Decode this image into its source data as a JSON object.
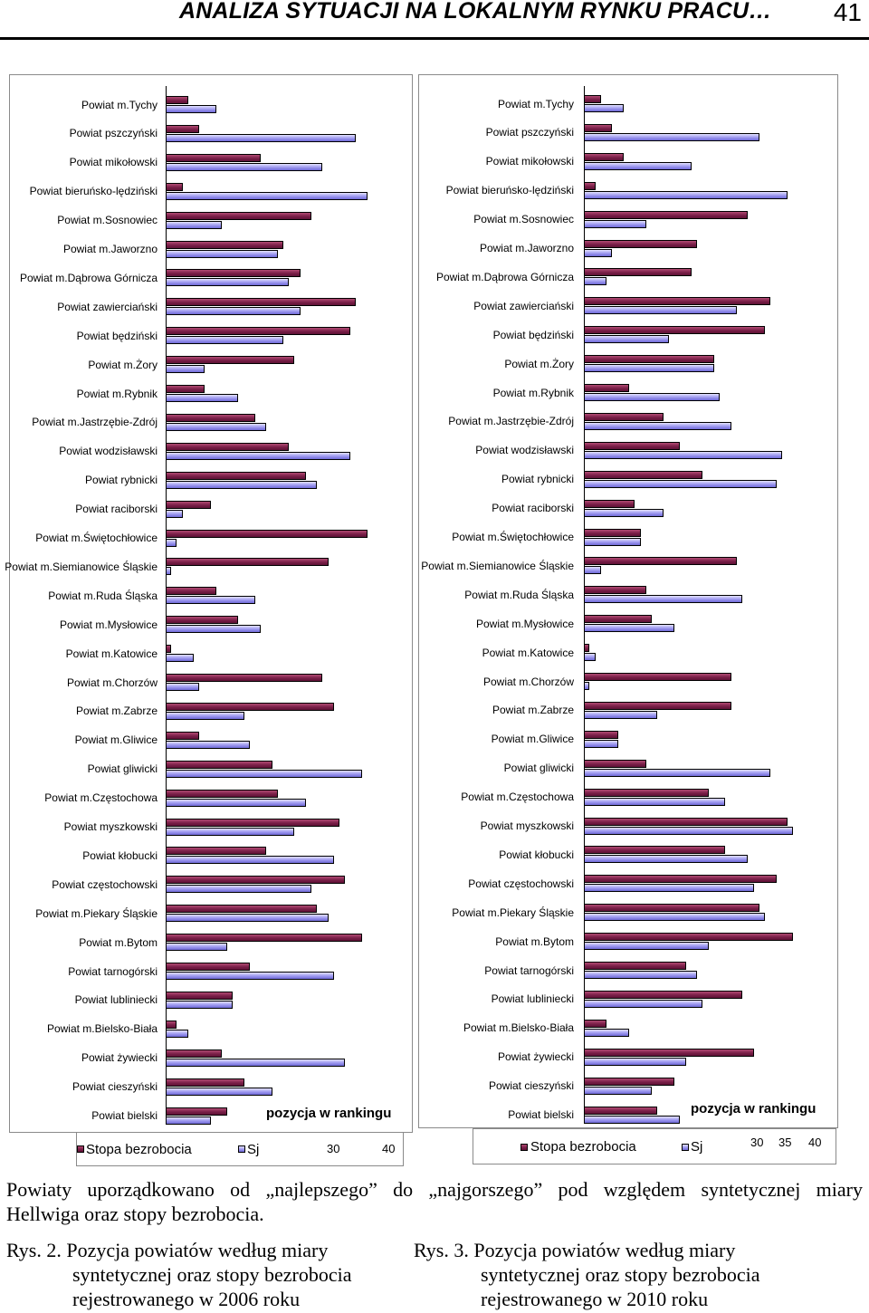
{
  "header": {
    "title": "ANALIZA SYTUACJI NA LOKALNYM RYNKU PRACU…",
    "page_number": "41"
  },
  "colors": {
    "stopa": "#7a1f48",
    "sj": "#9d98ef"
  },
  "chart_data": [
    {
      "type": "bar",
      "orientation": "horizontal",
      "year": "2006",
      "xlabel": "pozycja w rankingu",
      "xlim": [
        0,
        40
      ],
      "visible_ticks": [
        "30",
        "40"
      ],
      "legend": [
        "Stopa bezrobocia",
        "Sj"
      ],
      "categories": [
        "Powiat m.Tychy",
        "Powiat pszczyński",
        "Powiat mikołowski",
        "Powiat bieruńsko-lędziński",
        "Powiat m.Sosnowiec",
        "Powiat m.Jaworzno",
        "Powiat m.Dąbrowa Górnicza",
        "Powiat zawierciański",
        "Powiat będziński",
        "Powiat m.Żory",
        "Powiat m.Rybnik",
        "Powiat m.Jastrzębie-Zdrój",
        "Powiat wodzisławski",
        "Powiat rybnicki",
        "Powiat raciborski",
        "Powiat m.Świętochłowice",
        "Powiat m.Siemianowice Śląskie",
        "Powiat m.Ruda Śląska",
        "Powiat m.Mysłowice",
        "Powiat m.Katowice",
        "Powiat m.Chorzów",
        "Powiat m.Zabrze",
        "Powiat m.Gliwice",
        "Powiat gliwicki",
        "Powiat m.Częstochowa",
        "Powiat myszkowski",
        "Powiat kłobucki",
        "Powiat częstochowski",
        "Powiat m.Piekary Śląskie",
        "Powiat m.Bytom",
        "Powiat tarnogórski",
        "Powiat lubliniecki",
        "Powiat m.Bielsko-Biała",
        "Powiat żywiecki",
        "Powiat cieszyński",
        "Powiat bielski"
      ],
      "series": [
        {
          "name": "Stopa bezrobocia",
          "values": [
            4,
            6,
            17,
            3,
            26,
            21,
            24,
            34,
            33,
            23,
            7,
            16,
            22,
            25,
            8,
            36,
            29,
            9,
            13,
            1,
            28,
            30,
            6,
            19,
            20,
            31,
            18,
            32,
            27,
            35,
            15,
            12,
            2,
            10,
            14,
            11
          ]
        },
        {
          "name": "Sj",
          "values": [
            9,
            34,
            28,
            36,
            10,
            20,
            22,
            24,
            21,
            7,
            13,
            18,
            33,
            27,
            3,
            2,
            1,
            16,
            17,
            5,
            6,
            14,
            15,
            35,
            25,
            23,
            30,
            26,
            29,
            11,
            30,
            12,
            4,
            32,
            19,
            8
          ]
        }
      ]
    },
    {
      "type": "bar",
      "orientation": "horizontal",
      "year": "2010",
      "xlabel": "pozycja w rankingu",
      "xlim": [
        0,
        40
      ],
      "visible_ticks": [
        "30",
        "35",
        "40"
      ],
      "legend": [
        "Stopa bezrobocia",
        "Sj"
      ],
      "categories": [
        "Powiat m.Tychy",
        "Powiat pszczyński",
        "Powiat mikołowski",
        "Powiat bieruńsko-lędziński",
        "Powiat m.Sosnowiec",
        "Powiat m.Jaworzno",
        "Powiat m.Dąbrowa Górnicza",
        "Powiat zawierciański",
        "Powiat będziński",
        "Powiat m.Żory",
        "Powiat m.Rybnik",
        "Powiat m.Jastrzębie-Zdrój",
        "Powiat wodzisławski",
        "Powiat rybnicki",
        "Powiat raciborski",
        "Powiat m.Świętochłowice",
        "Powiat m.Siemianowice Śląskie",
        "Powiat m.Ruda Śląska",
        "Powiat m.Mysłowice",
        "Powiat m.Katowice",
        "Powiat m.Chorzów",
        "Powiat m.Zabrze",
        "Powiat m.Gliwice",
        "Powiat gliwicki",
        "Powiat m.Częstochowa",
        "Powiat myszkowski",
        "Powiat kłobucki",
        "Powiat częstochowski",
        "Powiat m.Piekary Śląskie",
        "Powiat m.Bytom",
        "Powiat tarnogórski",
        "Powiat lubliniecki",
        "Powiat m.Bielsko-Biała",
        "Powiat żywiecki",
        "Powiat cieszyński",
        "Powiat bielski"
      ],
      "series": [
        {
          "name": "Stopa bezrobocia",
          "values": [
            3,
            5,
            7,
            2,
            29,
            20,
            19,
            33,
            32,
            23,
            8,
            14,
            17,
            21,
            9,
            10,
            27,
            11,
            12,
            1,
            26,
            26,
            6,
            11,
            22,
            36,
            25,
            34,
            31,
            37,
            18,
            28,
            4,
            30,
            16,
            13
          ]
        },
        {
          "name": "Sj",
          "values": [
            7,
            31,
            19,
            36,
            11,
            5,
            4,
            27,
            15,
            23,
            24,
            26,
            35,
            34,
            14,
            10,
            3,
            28,
            16,
            2,
            1,
            13,
            6,
            33,
            25,
            37,
            29,
            30,
            32,
            22,
            20,
            21,
            8,
            18,
            12,
            17
          ]
        }
      ]
    }
  ],
  "charts_labels": {
    "left_axis_title": "pozycja w rankingu",
    "right_axis_title": "pozycja w rankingu",
    "left_legend": {
      "stopa": "Stopa bezrobocia",
      "sj": "Sj",
      "tick_a": "30",
      "tick_b": "40"
    },
    "right_legend": {
      "stopa": "Stopa bezrobocia",
      "sj": "Sj",
      "tick_a": "30",
      "tick_b": "35",
      "tick_c": "40"
    }
  },
  "caption": {
    "paragraph_line1": "Powiaty uporządkowano od „najlepszego” do „najgorszego” pod względem syntetycznej miary",
    "paragraph_line2": "Hellwiga oraz stopy bezrobocia.",
    "left": {
      "line1": "Rys. 2. Pozycja powiatów według miary",
      "line2": "syntetycznej oraz stopy bezrobocia",
      "line3": "rejestrowanego w 2006 roku"
    },
    "right": {
      "line1": "Rys. 3. Pozycja powiatów według miary",
      "line2": "syntetycznej oraz stopy bezrobocia",
      "line3": "rejestrowanego w 2010 roku"
    }
  }
}
